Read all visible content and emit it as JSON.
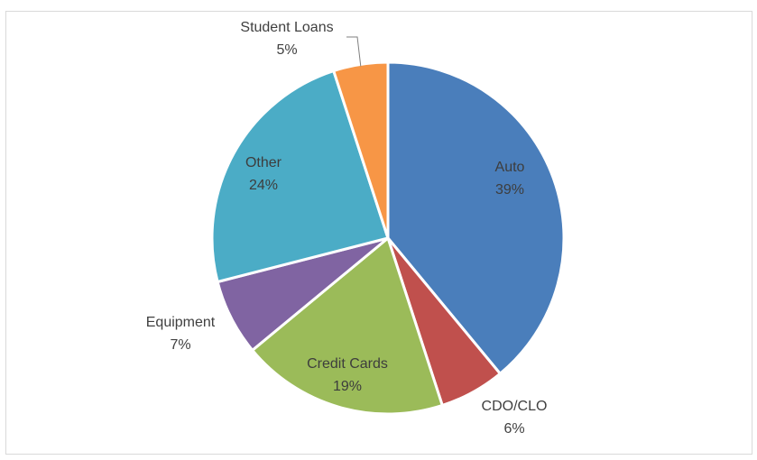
{
  "chart_data": {
    "type": "pie",
    "title": "",
    "slices": [
      {
        "label": "Auto",
        "value": 39,
        "value_label": "39%",
        "color": "#4a7ebb"
      },
      {
        "label": "CDO/CLO",
        "value": 6,
        "value_label": "6%",
        "color": "#c0504d"
      },
      {
        "label": "Credit Cards",
        "value": 19,
        "value_label": "19%",
        "color": "#9bbb59"
      },
      {
        "label": "Equipment",
        "value": 7,
        "value_label": "7%",
        "color": "#8064a2"
      },
      {
        "label": "Other",
        "value": 24,
        "value_label": "24%",
        "color": "#4bacc6"
      },
      {
        "label": "Student Loans",
        "value": 5,
        "value_label": "5%",
        "color": "#f79646"
      }
    ],
    "start_angle": "12 o'clock",
    "direction": "clockwise",
    "legend": "none",
    "data_labels": "category name and percentage"
  }
}
